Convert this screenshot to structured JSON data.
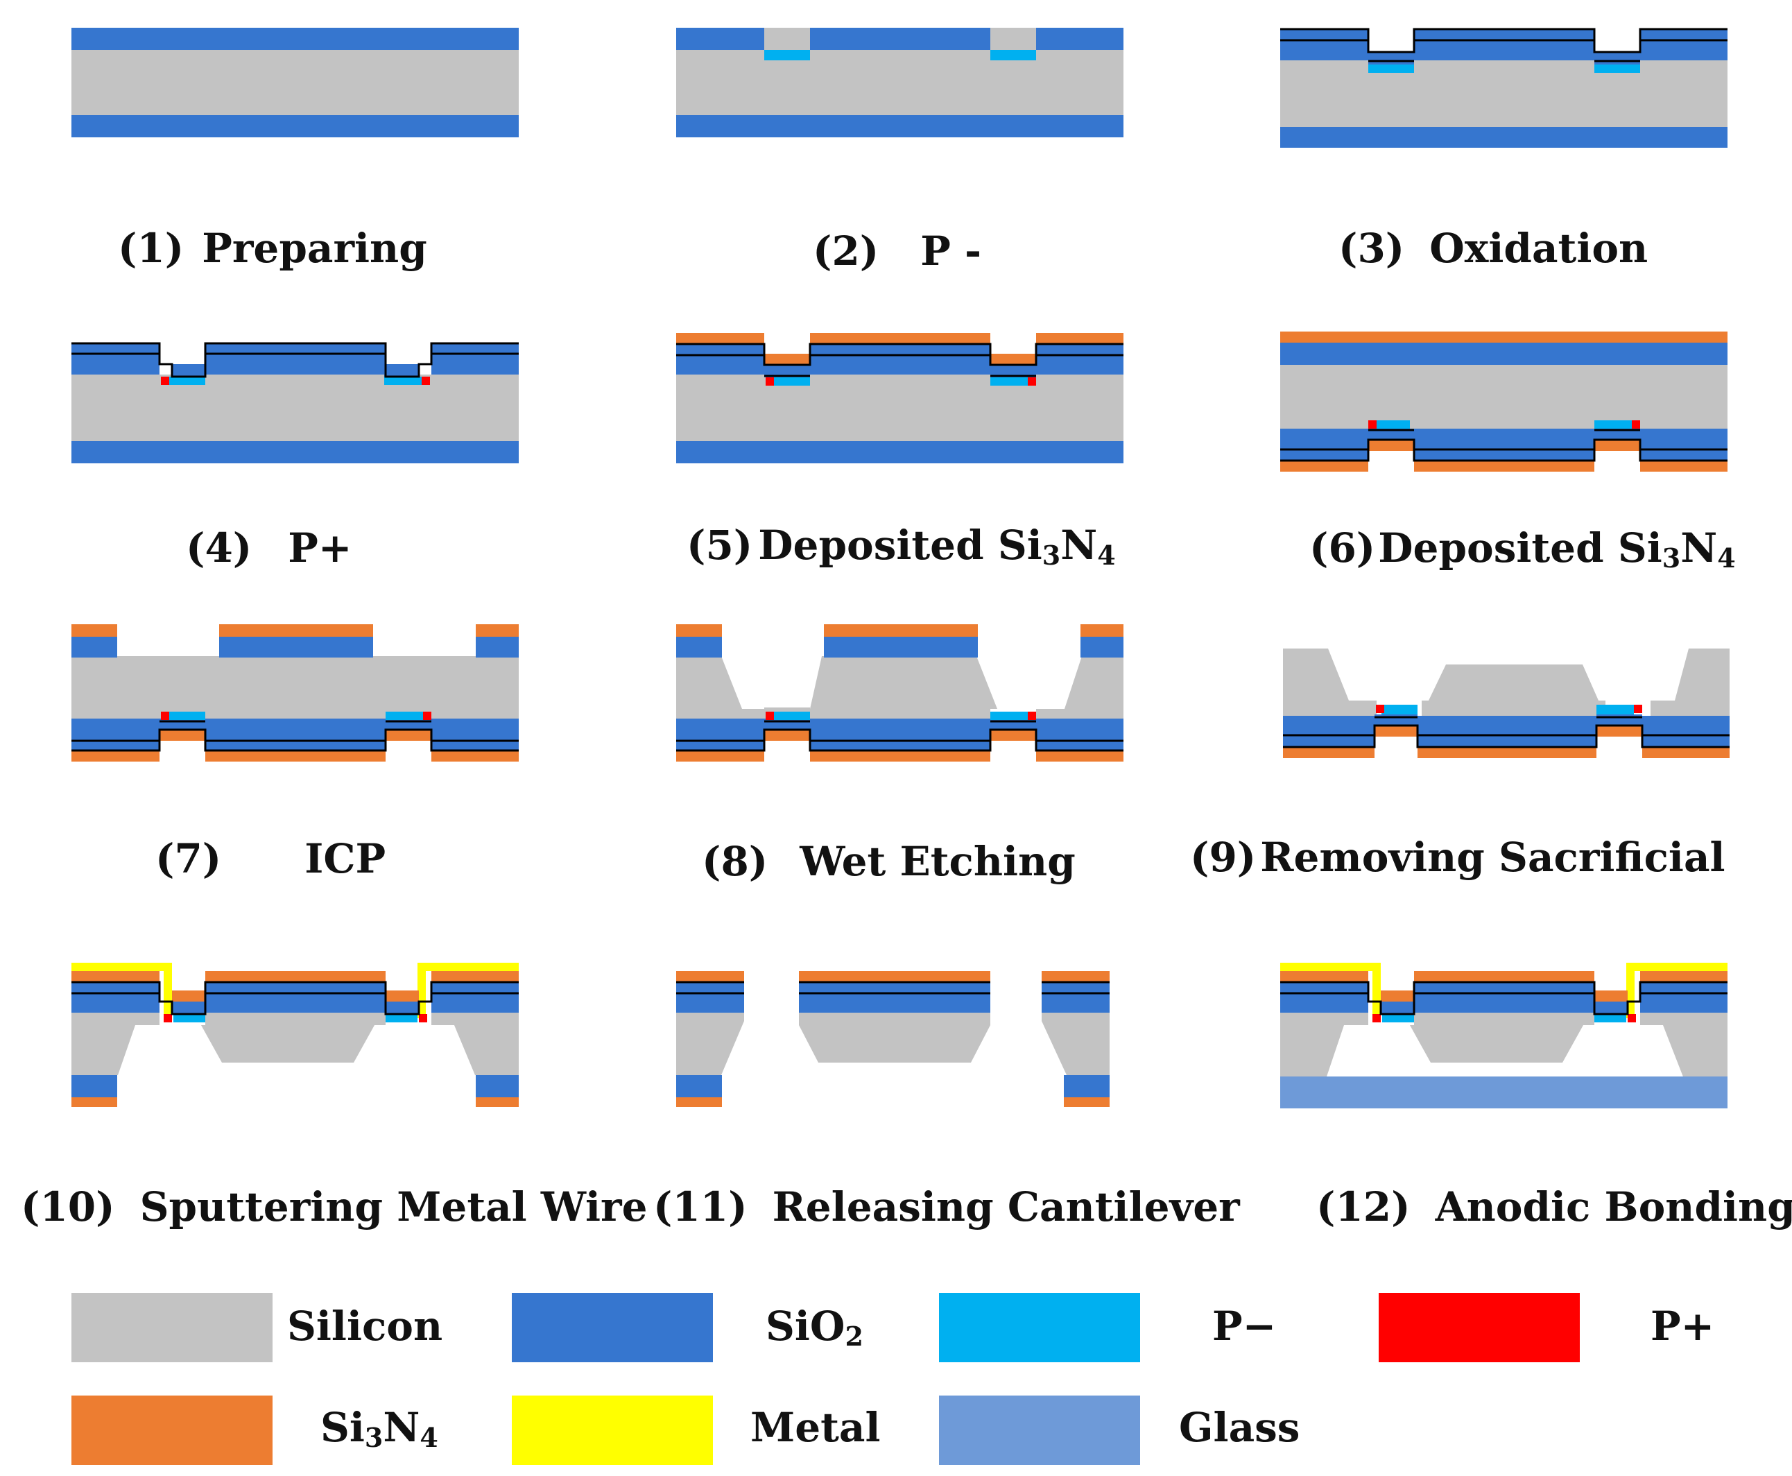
{
  "figure": {
    "colors": {
      "silicon": "#C3C3C3",
      "sio2": "#3676CF",
      "p_minus": "#00B0F0",
      "p_plus": "#FF0000",
      "si3n4": "#ED7D31",
      "metal": "#FFFF00",
      "glass": "#6E9AD8"
    },
    "steps": [
      {
        "num": "(1)",
        "label": "Preparing"
      },
      {
        "num": "(2)",
        "label": "P -"
      },
      {
        "num": "(3)",
        "label": "Oxidation"
      },
      {
        "num": "(4)",
        "label": "P+"
      },
      {
        "num": "(5)",
        "label": "Deposited Si",
        "sub1": "3",
        "mid": "N",
        "sub2": "4"
      },
      {
        "num": "(6)",
        "label": "Deposited Si",
        "sub1": "3",
        "mid": "N",
        "sub2": "4"
      },
      {
        "num": "(7)",
        "label": "ICP"
      },
      {
        "num": "(8)",
        "label": "Wet Etching"
      },
      {
        "num": "(9)",
        "label": "Removing Sacrificial"
      },
      {
        "num": "(10)",
        "label": "Sputtering Metal Wire"
      },
      {
        "num": "(11)",
        "label": "Releasing Cantilever"
      },
      {
        "num": "(12)",
        "label": "Anodic Bonding"
      }
    ],
    "legend": {
      "silicon": "Silicon",
      "sio2": "SiO",
      "sio2_sub": "2",
      "p_minus": "P−",
      "p_plus": "P+",
      "si3n4": "Si",
      "si3n4_sub1": "3",
      "si3n4_mid": "N",
      "si3n4_sub2": "4",
      "metal": "Metal",
      "glass": "Glass"
    }
  }
}
